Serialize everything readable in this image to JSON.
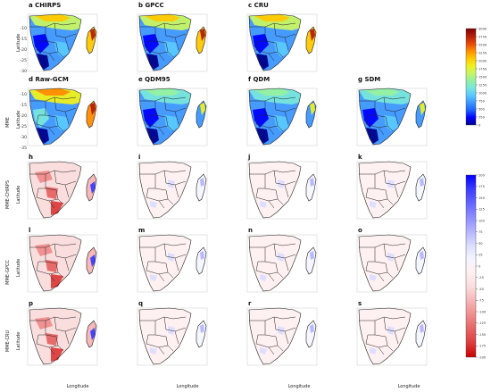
{
  "figure": {
    "row_labels": [
      "MME",
      "MME-CHIRPS",
      "MME-GPCC",
      "MME-CRU"
    ],
    "axis_x": "Longitude",
    "axis_y": "Latitude",
    "lat_ticks": [
      "-10",
      "-15",
      "-20",
      "-25",
      "-30",
      "-35"
    ]
  },
  "colors": {
    "precip_scale": [
      "#00008b",
      "#0000ff",
      "#1e64ff",
      "#3c96ff",
      "#5ac8ff",
      "#78e6dc",
      "#96f0a0",
      "#c8f564",
      "#f0f01e",
      "#ffc800",
      "#ff8c00",
      "#e6460a",
      "#b41e0a",
      "#7f0000"
    ],
    "bias_scale": [
      "#0000ff",
      "#3c3cff",
      "#6464ff",
      "#8c8cff",
      "#b4b4ff",
      "#dcdcff",
      "#f5f5ff",
      "#fff0f0",
      "#fadcdc",
      "#f5b4b4",
      "#f08c8c",
      "#e66464",
      "#dc3c3c",
      "#c80000"
    ]
  },
  "chart_data": [
    {
      "type": "heatmap",
      "group": "precipitation",
      "panels": [
        "a CHIRPS",
        "b GPCC",
        "c CRU",
        "d Raw-GCM",
        "e QDM95",
        "f QDM",
        "g SDM"
      ],
      "colorbar_ticks": [
        "0",
        "250",
        "500",
        "750",
        "1000",
        "1250",
        "1500",
        "1750",
        "2000",
        "2250",
        "2500",
        "2750",
        "3000"
      ]
    },
    {
      "type": "heatmap",
      "group": "bias",
      "panels": [
        "h",
        "i",
        "j",
        "k",
        "l",
        "m",
        "n",
        "o",
        "p",
        "q",
        "r",
        "s"
      ],
      "colorbar_ticks": [
        "200",
        "175",
        "150",
        "125",
        "100",
        "75",
        "50",
        "25",
        "0",
        "-25",
        "-50",
        "-75",
        "-100",
        "-125",
        "-150",
        "-175",
        "-200"
      ]
    }
  ]
}
